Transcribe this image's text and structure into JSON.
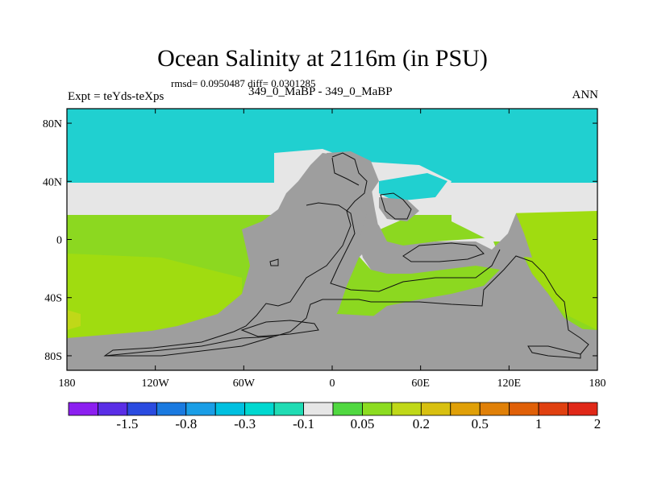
{
  "figure": {
    "title": "Ocean Salinity at 2116m (in PSU)",
    "stats": "rmsd= 0.0950487 diff= 0.0301285",
    "subtitle": "349_0_MaBP - 349_0_MaBP",
    "expt_label": "Expt = teYds-teXps",
    "season": "ANN"
  },
  "chart_data": {
    "type": "heatmap",
    "variable": "Ocean Salinity difference",
    "units": "PSU",
    "depth": "2116m",
    "x_ticks": [
      "180",
      "120W",
      "60W",
      "0",
      "60E",
      "120E",
      "180"
    ],
    "y_ticks": [
      "80N",
      "40N",
      "0",
      "40S",
      "80S"
    ],
    "x_range": [
      -180,
      180
    ],
    "y_range": [
      -90,
      90
    ],
    "land_color": "#9e9e9e",
    "colorbar": {
      "colors": [
        "#8c1ff0",
        "#5a2ee6",
        "#2a4be0",
        "#1a7ae0",
        "#1a9ee6",
        "#00c0e0",
        "#00d8d0",
        "#20dcb4",
        "#e6e6e6",
        "#50d840",
        "#8cdc20",
        "#c0d818",
        "#d8c010",
        "#e0a008",
        "#e08008",
        "#e06008",
        "#e04010",
        "#e02818"
      ],
      "labels": [
        {
          "text": "-1.5",
          "index": 2
        },
        {
          "text": "-0.8",
          "index": 4
        },
        {
          "text": "-0.3",
          "index": 6
        },
        {
          "text": "-0.1",
          "index": 8
        },
        {
          "text": "0.05",
          "index": 10
        },
        {
          "text": "0.2",
          "index": 12
        },
        {
          "text": "0.5",
          "index": 14
        },
        {
          "text": "1",
          "index": 16
        },
        {
          "text": "2",
          "index": 18
        }
      ]
    },
    "regions": [
      {
        "name": "northern-high-latitude-band",
        "value_class": "-0.1 to -0.05",
        "color": "#20d0d0"
      },
      {
        "name": "mid-latitude-near-zero-band",
        "value_class": "-0.05 to 0.05",
        "color": "#e6e6e6"
      },
      {
        "name": "southern-positive-band",
        "value_class": "0.05 to 0.2",
        "color": "#8cd820"
      },
      {
        "name": "south-pacific-edge",
        "value_class": "0.2 to 0.3",
        "color": "#c0d818"
      }
    ]
  }
}
